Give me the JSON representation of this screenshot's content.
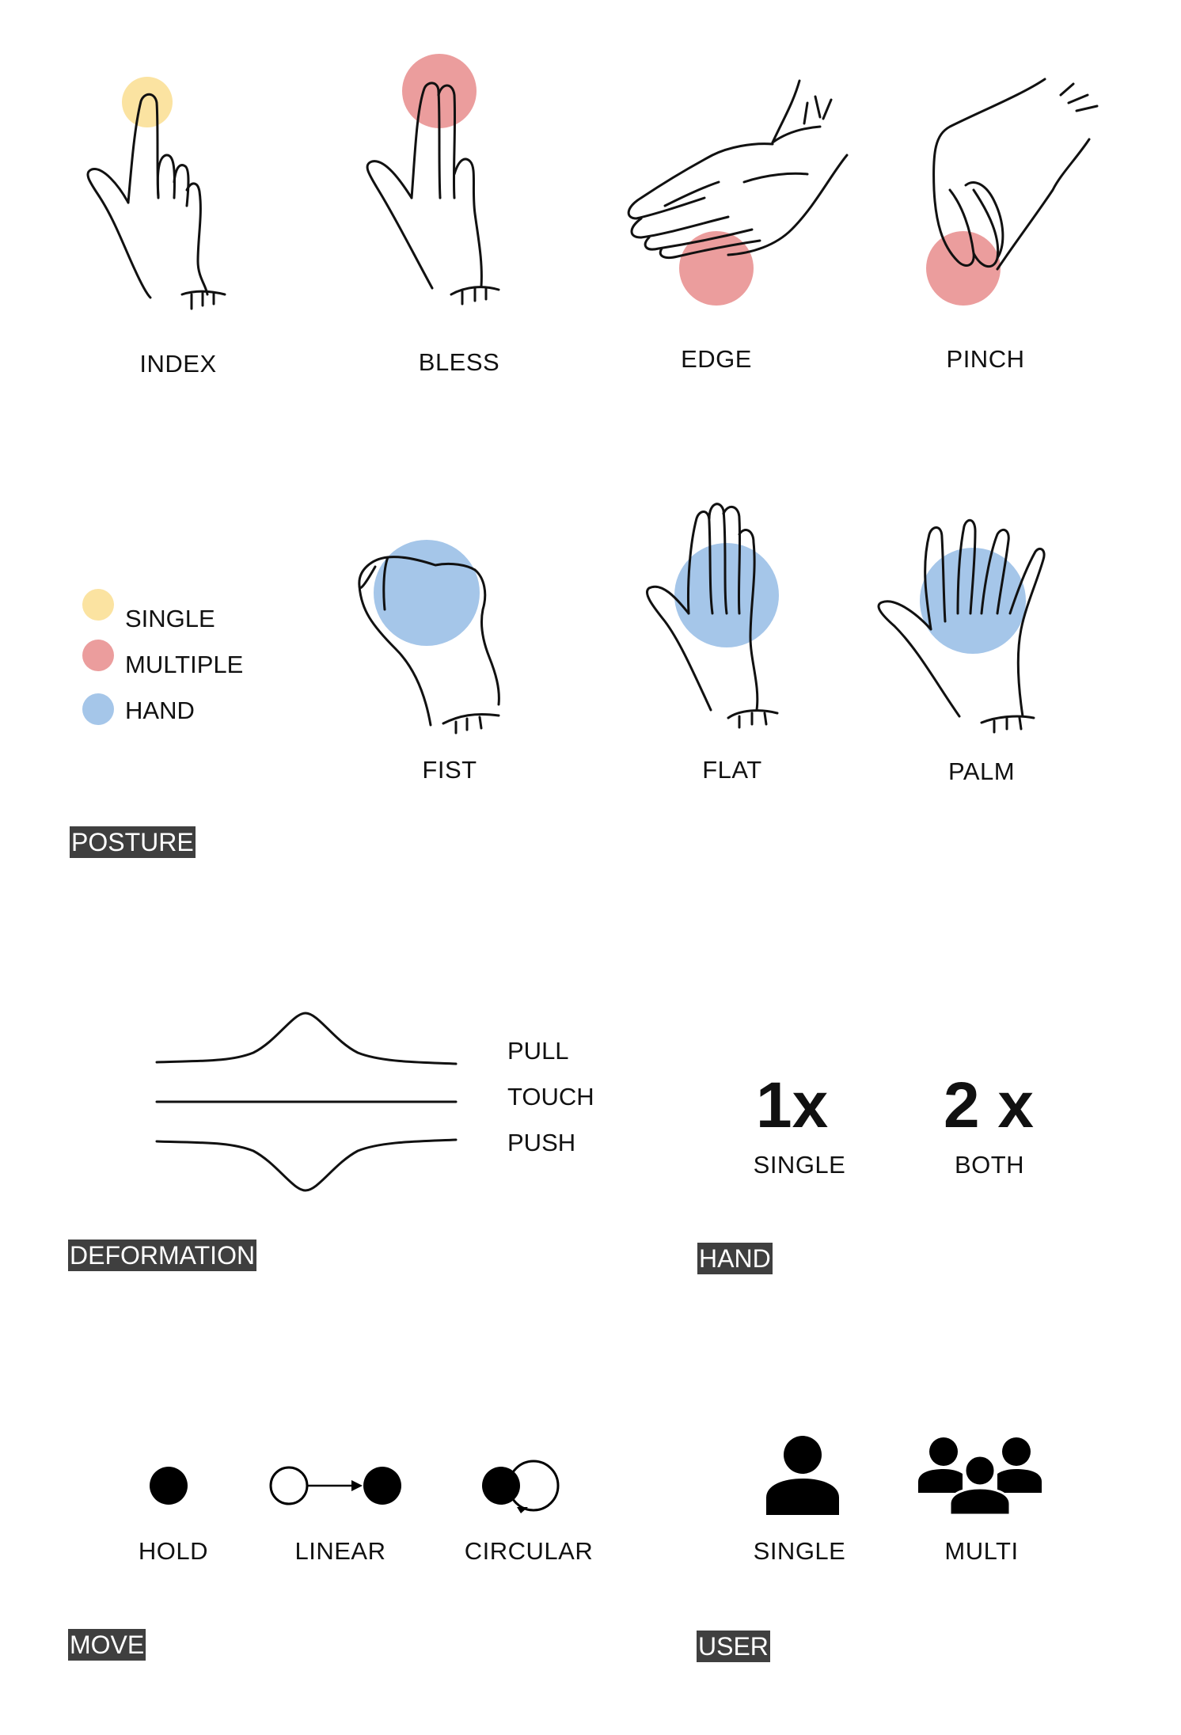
{
  "colors": {
    "single": "#fbe3a1",
    "multiple": "#eb9d9d",
    "hand": "#a5c6e9",
    "tag_bg": "#3f3f3f"
  },
  "posture": {
    "section_label": "POSTURE",
    "gestures": [
      "INDEX",
      "BLESS",
      "EDGE",
      "PINCH",
      "FIST",
      "FLAT",
      "PALM"
    ],
    "legend": [
      "SINGLE",
      "MULTIPLE",
      "HAND"
    ]
  },
  "deformation": {
    "section_label": "DEFORMATION",
    "items": [
      "PULL",
      "TOUCH",
      "PUSH"
    ]
  },
  "hand": {
    "section_label": "HAND",
    "options": [
      {
        "count": "1x",
        "label": "SINGLE"
      },
      {
        "count": "2 x",
        "label": "BOTH"
      }
    ]
  },
  "move": {
    "section_label": "MOVE",
    "items": [
      "HOLD",
      "LINEAR",
      "CIRCULAR"
    ]
  },
  "user": {
    "section_label": "USER",
    "items": [
      "SINGLE",
      "MULTI"
    ],
    "icons": [
      "single-user-icon",
      "multi-user-icon"
    ]
  }
}
